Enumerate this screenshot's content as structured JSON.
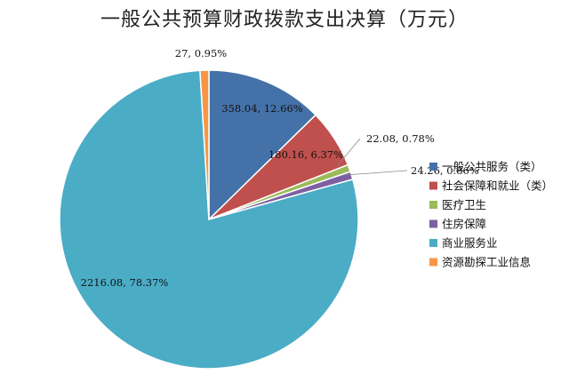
{
  "chart_data": {
    "type": "pie",
    "title": "一般公共预算财政拨款支出决算（万元）",
    "categories": [
      "一般公共服务（类）",
      "社会保障和就业（类）",
      "医疗卫生",
      "住房保障",
      "商业服务业",
      "资源勘探工业信息"
    ],
    "values": [
      358.04,
      180.16,
      22.08,
      24.26,
      2216.08,
      27
    ],
    "percents": [
      "12.66%",
      "6.37%",
      "0.78%",
      "0.86%",
      "78.37%",
      "0.95%"
    ],
    "data_labels": [
      "358.04, 12.66%",
      "180.16, 6.37%",
      "22.08, 0.78%",
      "24.26, 0.86%",
      "2216.08, 78.37%",
      "27, 0.95%"
    ],
    "colors": [
      "#4472A8",
      "#C0504D",
      "#9BBB59",
      "#7E5FA1",
      "#4BACC6",
      "#F79646"
    ],
    "start_angle_deg": 0,
    "direction": "clockwise",
    "legend_position": "right"
  }
}
